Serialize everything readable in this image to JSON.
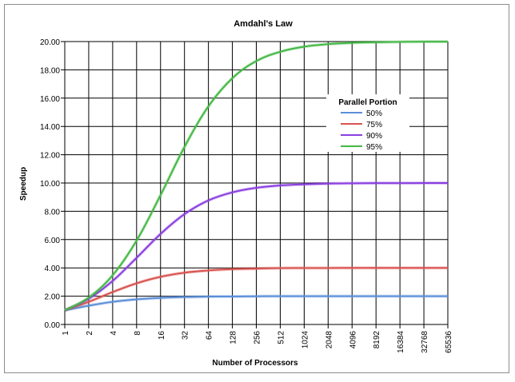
{
  "chart_data": {
    "type": "line",
    "title": "Amdahl's Law",
    "xlabel": "Number of Processors",
    "ylabel": "Speedup",
    "categories": [
      "1",
      "2",
      "4",
      "8",
      "16",
      "32",
      "64",
      "128",
      "256",
      "512",
      "1024",
      "2048",
      "4096",
      "8192",
      "16384",
      "32768",
      "65536"
    ],
    "yticks": [
      "0.00",
      "2.00",
      "4.00",
      "6.00",
      "8.00",
      "10.00",
      "12.00",
      "14.00",
      "16.00",
      "18.00",
      "20.00"
    ],
    "ylim": [
      0,
      20
    ],
    "grid": true,
    "legend": {
      "title": "Parallel Portion",
      "placement": "right"
    },
    "series": [
      {
        "name": "50%",
        "color": "#5b8fd9",
        "values": [
          1.0,
          1.33,
          1.6,
          1.78,
          1.88,
          1.94,
          1.97,
          1.98,
          1.99,
          2.0,
          2.0,
          2.0,
          2.0,
          2.0,
          2.0,
          2.0,
          2.0
        ]
      },
      {
        "name": "75%",
        "color": "#d9534f",
        "values": [
          1.0,
          1.6,
          2.29,
          2.91,
          3.37,
          3.66,
          3.82,
          3.91,
          3.95,
          3.98,
          3.99,
          3.99,
          4.0,
          4.0,
          4.0,
          4.0,
          4.0
        ]
      },
      {
        "name": "90%",
        "color": "#8a3fe0",
        "values": [
          1.0,
          1.82,
          3.08,
          4.71,
          6.4,
          7.8,
          8.77,
          9.34,
          9.66,
          9.83,
          9.91,
          9.96,
          9.98,
          9.99,
          9.99,
          10.0,
          10.0
        ]
      },
      {
        "name": "95%",
        "color": "#44b844",
        "values": [
          1.0,
          1.9,
          3.48,
          5.93,
          9.14,
          12.55,
          15.42,
          17.41,
          18.62,
          19.28,
          19.64,
          19.82,
          19.91,
          19.95,
          19.98,
          19.99,
          19.99
        ]
      }
    ]
  }
}
